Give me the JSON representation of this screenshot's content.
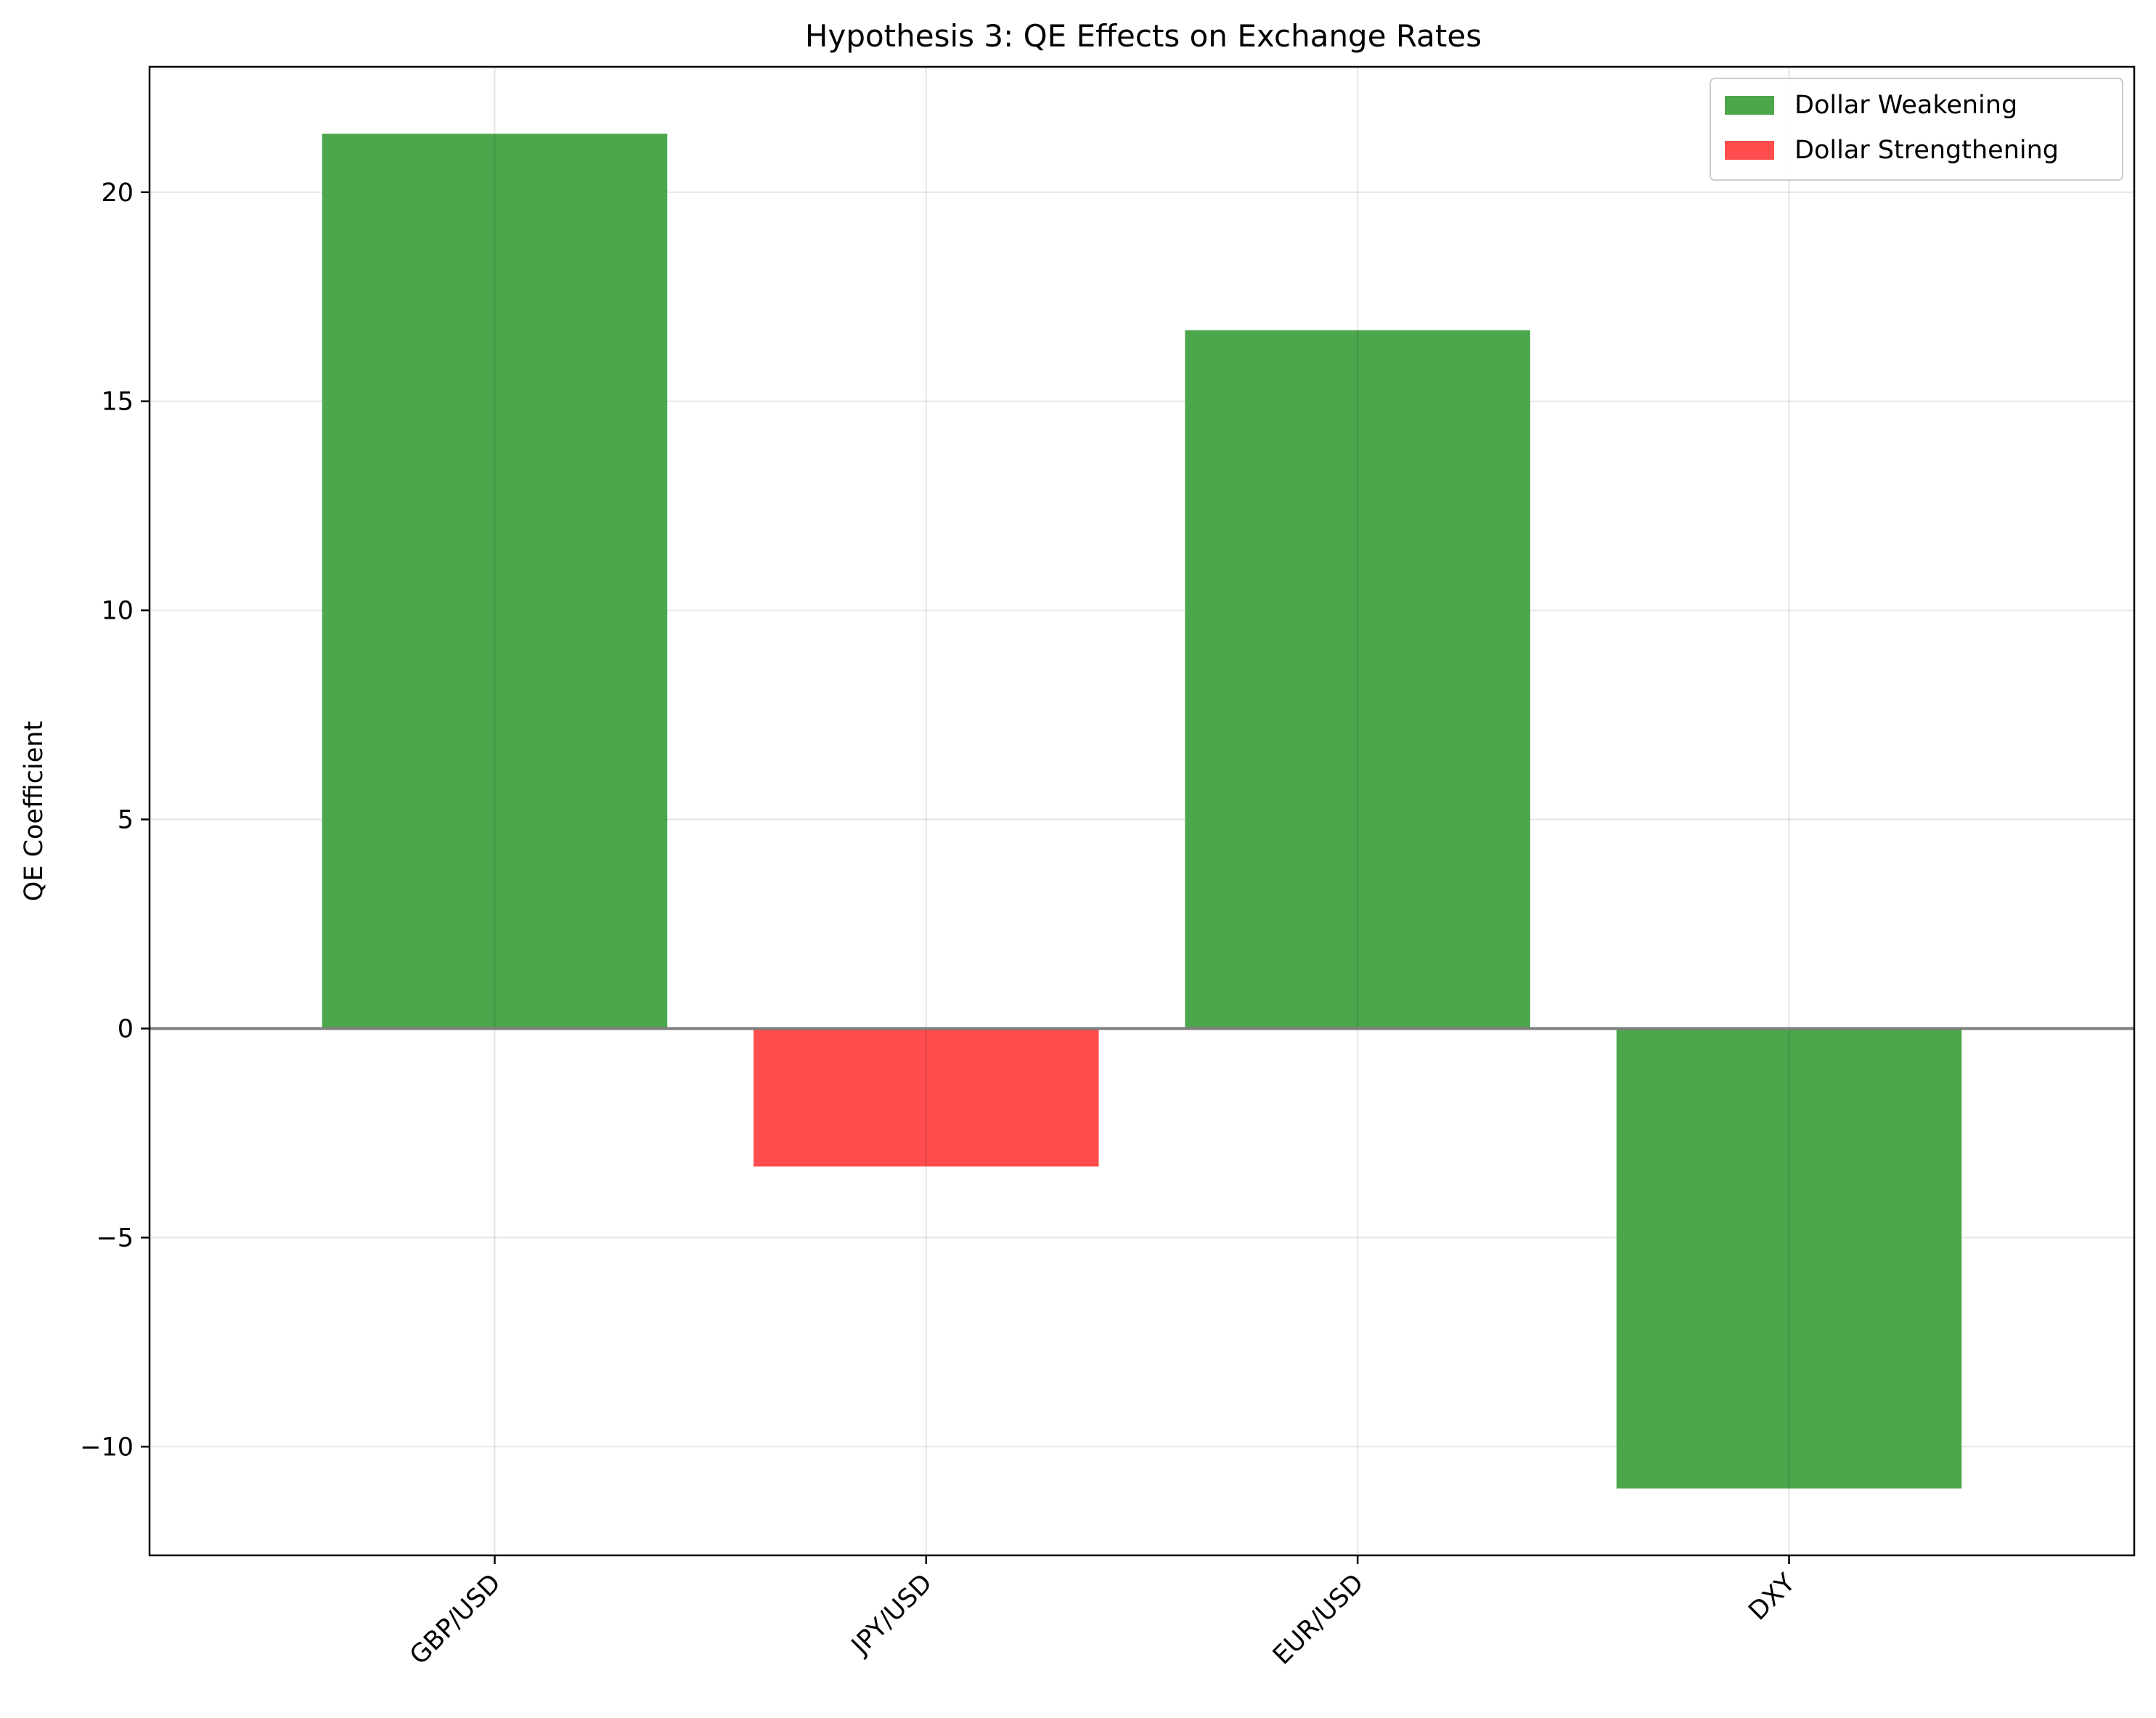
{
  "chart_data": {
    "type": "bar",
    "title": "Hypothesis 3: QE Effects on Exchange Rates",
    "xlabel": "",
    "ylabel": "QE Coefficient",
    "categories": [
      "GBP/USD",
      "JPY/USD",
      "EUR/USD",
      "DXY"
    ],
    "values": [
      21.4,
      -3.3,
      16.7,
      -11.0
    ],
    "bar_groups": [
      "Dollar Weakening",
      "Dollar Strengthening",
      "Dollar Weakening",
      "Dollar Weakening"
    ],
    "ylim": [
      -12.6,
      23.0
    ],
    "yticks": [
      -10,
      -5,
      0,
      5,
      10,
      15,
      20
    ],
    "ytick_labels": [
      "−10",
      "−5",
      "0",
      "5",
      "10",
      "15",
      "20"
    ],
    "grid": true,
    "x_tick_rotation_deg": 45,
    "legend": {
      "position": "top-right",
      "entries": [
        {
          "label": "Dollar Weakening",
          "color": "#4ca64c"
        },
        {
          "label": "Dollar Strengthening",
          "color": "#ff4c4c"
        }
      ]
    },
    "colors": {
      "Dollar Weakening": "#4ca64c",
      "Dollar Strengthening": "#ff4c4c",
      "zero_line": "#7f7f7f",
      "grid": "#e6e6e6"
    }
  }
}
